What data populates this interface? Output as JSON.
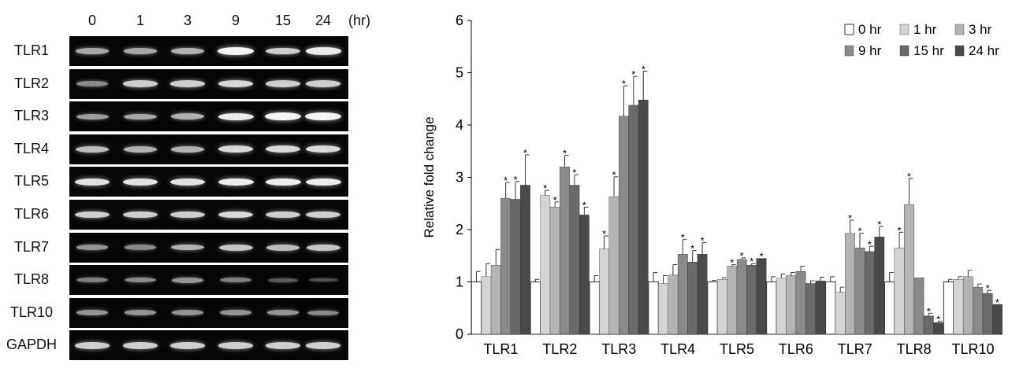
{
  "gel": {
    "time_points": [
      "0",
      "1",
      "3",
      "9",
      "15",
      "24"
    ],
    "time_unit": "(hr)",
    "rows": [
      {
        "gene": "TLR1",
        "intensity": [
          0.55,
          0.55,
          0.6,
          0.95,
          0.75,
          0.9
        ]
      },
      {
        "gene": "TLR2",
        "intensity": [
          0.4,
          0.75,
          0.75,
          0.8,
          0.75,
          0.75
        ]
      },
      {
        "gene": "TLR3",
        "intensity": [
          0.5,
          0.55,
          0.6,
          0.9,
          0.95,
          0.95
        ]
      },
      {
        "gene": "TLR4",
        "intensity": [
          0.65,
          0.6,
          0.6,
          0.8,
          0.8,
          0.8
        ]
      },
      {
        "gene": "TLR5",
        "intensity": [
          0.85,
          0.85,
          0.85,
          0.9,
          0.9,
          0.9
        ]
      },
      {
        "gene": "TLR6",
        "intensity": [
          0.75,
          0.75,
          0.75,
          0.8,
          0.75,
          0.75
        ]
      },
      {
        "gene": "TLR7",
        "intensity": [
          0.45,
          0.4,
          0.6,
          0.7,
          0.65,
          0.7
        ]
      },
      {
        "gene": "TLR8",
        "intensity": [
          0.35,
          0.4,
          0.45,
          0.35,
          0.15,
          0.1
        ]
      },
      {
        "gene": "TLR10",
        "intensity": [
          0.45,
          0.45,
          0.45,
          0.45,
          0.45,
          0.4
        ]
      },
      {
        "gene": "GAPDH",
        "intensity": [
          0.75,
          0.75,
          0.75,
          0.75,
          0.75,
          0.75
        ]
      }
    ]
  },
  "chart_data": {
    "type": "bar",
    "ylabel": "Relative fold change",
    "ylim": [
      0,
      6
    ],
    "yticks": [
      "0",
      "1",
      "2",
      "3",
      "4",
      "5",
      "6"
    ],
    "categories": [
      "TLR1",
      "TLR2",
      "TLR3",
      "TLR4",
      "TLR5",
      "TLR6",
      "TLR7",
      "TLR8",
      "TLR10"
    ],
    "significance_marker": "*",
    "legend_position": "top-right",
    "series": [
      {
        "name": "0 hr",
        "color": "#ffffff",
        "values": [
          1,
          1,
          1,
          1,
          1,
          1,
          1,
          1,
          1
        ],
        "errors": [
          0.2,
          0.05,
          0.12,
          0.18,
          0.03,
          0.1,
          0.1,
          0.18,
          0.05
        ],
        "significant": [
          false,
          false,
          false,
          false,
          false,
          false,
          false,
          false,
          false
        ]
      },
      {
        "name": "1 hr",
        "color": "#d4d4d4",
        "values": [
          1.1,
          2.65,
          1.63,
          0.97,
          1.05,
          1.07,
          0.8,
          1.65,
          1.05
        ],
        "errors": [
          0.25,
          0.1,
          0.25,
          0.15,
          0.03,
          0.08,
          0.1,
          0.3,
          0.05
        ],
        "significant": [
          false,
          true,
          true,
          false,
          false,
          false,
          false,
          true,
          false
        ]
      },
      {
        "name": "3 hr",
        "color": "#b4b4b4",
        "values": [
          1.32,
          2.43,
          2.63,
          1.13,
          1.3,
          1.12,
          1.93,
          2.48,
          1.1
        ],
        "errors": [
          0.3,
          0.1,
          0.38,
          0.2,
          0.03,
          0.06,
          0.25,
          0.5,
          0.12
        ],
        "significant": [
          false,
          true,
          true,
          false,
          true,
          false,
          true,
          true,
          false
        ]
      },
      {
        "name": "9 hr",
        "color": "#8a8a8a",
        "values": [
          2.6,
          3.2,
          4.17,
          1.53,
          1.43,
          1.2,
          1.65,
          1.08,
          0.9
        ],
        "errors": [
          0.3,
          0.22,
          0.58,
          0.28,
          0.03,
          0.1,
          0.28,
          0.0,
          0.06
        ],
        "significant": [
          true,
          true,
          true,
          true,
          true,
          false,
          true,
          false,
          false
        ]
      },
      {
        "name": "15 hr",
        "color": "#6a6a6a",
        "values": [
          2.58,
          2.85,
          4.38,
          1.38,
          1.32,
          0.97,
          1.58,
          0.35,
          0.78
        ],
        "errors": [
          0.34,
          0.2,
          0.55,
          0.22,
          0.03,
          0.05,
          0.1,
          0.05,
          0.06
        ],
        "significant": [
          true,
          true,
          true,
          true,
          true,
          false,
          true,
          true,
          true
        ]
      },
      {
        "name": "24 hr",
        "color": "#4a4a4a",
        "values": [
          2.85,
          2.28,
          4.48,
          1.53,
          1.45,
          1.02,
          1.86,
          0.22,
          0.57
        ],
        "errors": [
          0.58,
          0.15,
          0.55,
          0.22,
          0.0,
          0.07,
          0.2,
          0.03,
          0.0
        ],
        "significant": [
          true,
          true,
          true,
          true,
          true,
          false,
          true,
          true,
          true
        ]
      }
    ]
  }
}
